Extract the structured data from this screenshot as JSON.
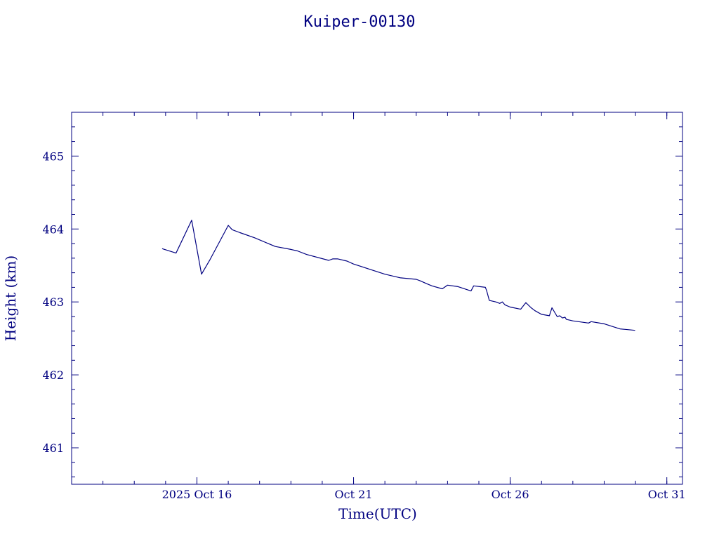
{
  "chart_data": {
    "type": "line",
    "title": "Kuiper-00130",
    "xlabel": "Time(UTC)",
    "ylabel": "Height (km)",
    "xlim": [
      "2025-10-12T00:00",
      "2025-10-31T12:00"
    ],
    "ylim": [
      460.5,
      465.6
    ],
    "x_ticks": [
      {
        "date": "2025-10-16",
        "label": "2025 Oct 16"
      },
      {
        "date": "2025-10-21",
        "label": "Oct 21"
      },
      {
        "date": "2025-10-26",
        "label": "Oct 26"
      },
      {
        "date": "2025-10-31",
        "label": "Oct 31"
      }
    ],
    "y_ticks": [
      461,
      462,
      463,
      464,
      465
    ],
    "grid": false,
    "color": "#000080",
    "series": [
      {
        "x": [
          "2025-10-14T21:20",
          "2025-10-15T08:00",
          "2025-10-15T20:00",
          "2025-10-16T03:30",
          "2025-10-16T10:00",
          "2025-10-17T00:00",
          "2025-10-17T03:00",
          "2025-10-17T09:00",
          "2025-10-17T20:00",
          "2025-10-18T12:00",
          "2025-10-19T00:00",
          "2025-10-19T05:00",
          "2025-10-19T12:00",
          "2025-10-20T05:00",
          "2025-10-20T08:00",
          "2025-10-20T12:00",
          "2025-10-20T19:00",
          "2025-10-21T00:00",
          "2025-10-21T12:00",
          "2025-10-22T00:00",
          "2025-10-22T12:00",
          "2025-10-23T00:00",
          "2025-10-23T03:00",
          "2025-10-23T08:00",
          "2025-10-23T12:00",
          "2025-10-23T20:00",
          "2025-10-24T00:00",
          "2025-10-24T08:00",
          "2025-10-24T18:00",
          "2025-10-24T20:00",
          "2025-10-25T05:00",
          "2025-10-25T06:00",
          "2025-10-25T08:00",
          "2025-10-25T13:00",
          "2025-10-25T16:00",
          "2025-10-25T18:00",
          "2025-10-25T20:00",
          "2025-10-26T00:00",
          "2025-10-26T08:00",
          "2025-10-26T12:00",
          "2025-10-26T16:00",
          "2025-10-26T19:00",
          "2025-10-27T00:00",
          "2025-10-27T06:00",
          "2025-10-27T08:00",
          "2025-10-27T12:00",
          "2025-10-27T14:00",
          "2025-10-27T16:00",
          "2025-10-27T18:00",
          "2025-10-27T19:00",
          "2025-10-28T00:00",
          "2025-10-28T12:00",
          "2025-10-28T14:00",
          "2025-10-29T00:00",
          "2025-10-29T12:00",
          "2025-10-29T23:40"
        ],
        "values": [
          463.73,
          463.67,
          464.12,
          463.38,
          463.58,
          464.05,
          463.99,
          463.95,
          463.88,
          463.76,
          463.72,
          463.7,
          463.65,
          463.57,
          463.59,
          463.59,
          463.56,
          463.52,
          463.45,
          463.38,
          463.33,
          463.31,
          463.29,
          463.25,
          463.22,
          463.18,
          463.23,
          463.21,
          463.15,
          463.22,
          463.2,
          463.15,
          463.02,
          463.0,
          462.98,
          463.0,
          462.96,
          462.93,
          462.9,
          462.99,
          462.92,
          462.88,
          462.83,
          462.81,
          462.92,
          462.8,
          462.81,
          462.78,
          462.79,
          462.76,
          462.74,
          462.71,
          462.73,
          462.7,
          462.63,
          462.61
        ]
      }
    ]
  }
}
